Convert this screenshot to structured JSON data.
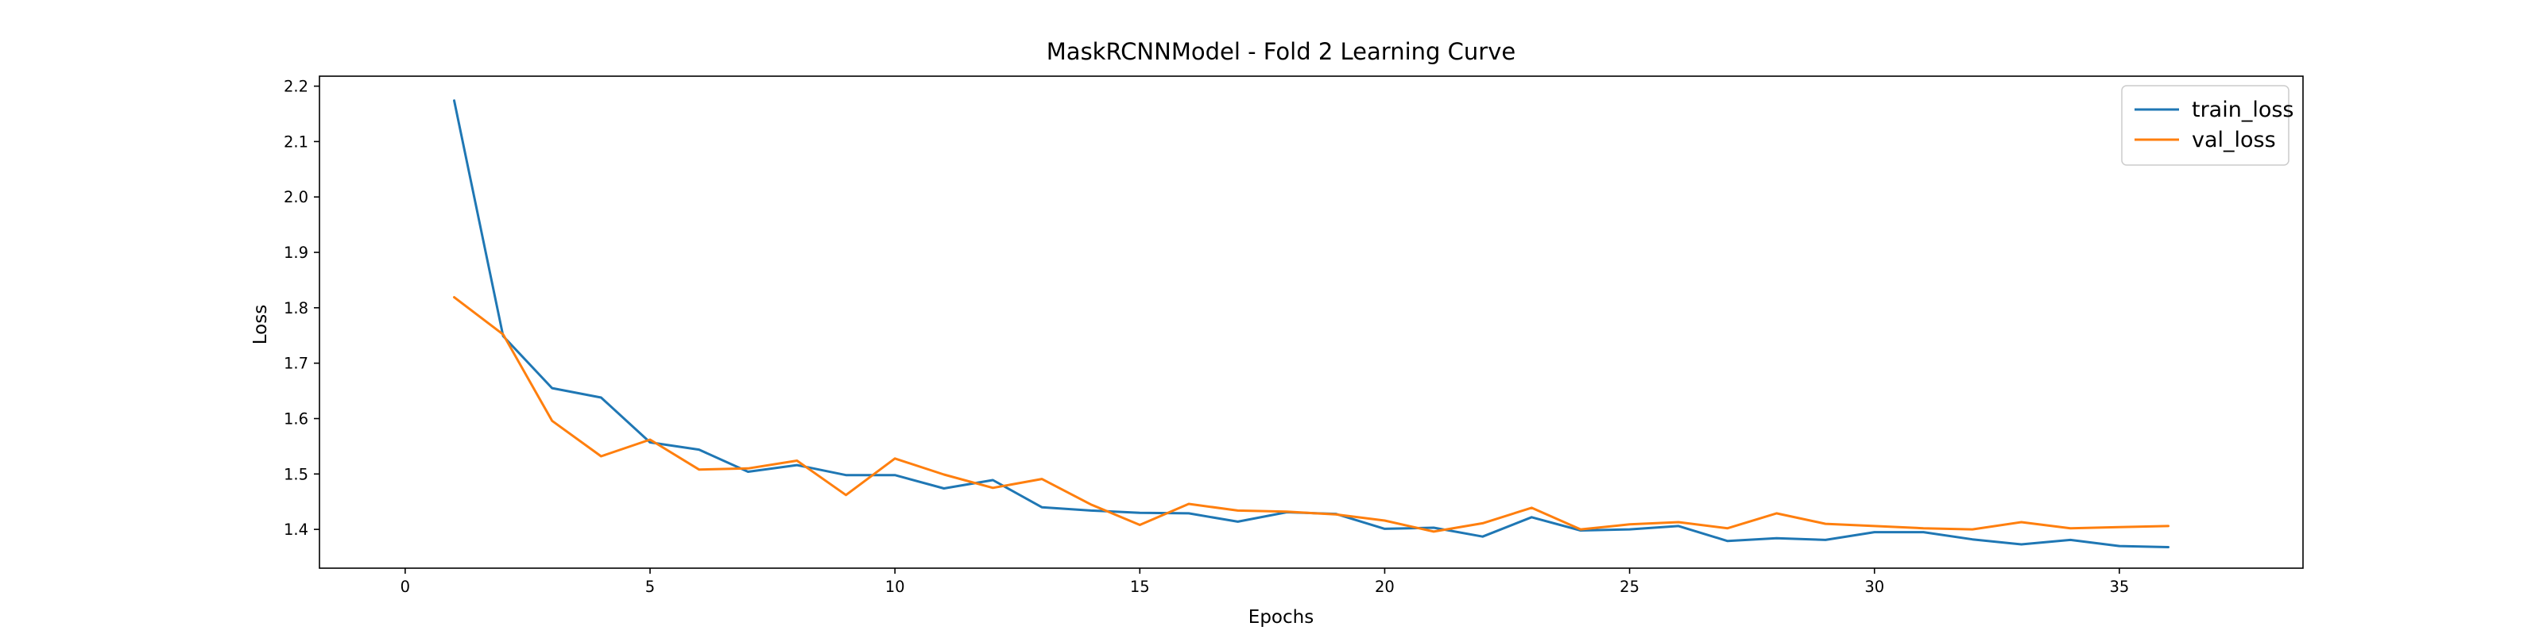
{
  "chart_data": {
    "type": "line",
    "title": "MaskRCNNModel - Fold 2 Learning Curve",
    "xlabel": "Epochs",
    "ylabel": "Loss",
    "xlim": [
      -1.75,
      38.75
    ],
    "ylim": [
      1.33,
      2.218
    ],
    "xticks": [
      0,
      5,
      10,
      15,
      20,
      25,
      30,
      35
    ],
    "yticks": [
      1.4,
      1.5,
      1.6,
      1.7,
      1.8,
      1.9,
      2.0,
      2.1,
      2.2
    ],
    "grid": false,
    "legend_position": "top-right",
    "x": [
      1,
      2,
      3,
      4,
      5,
      6,
      7,
      8,
      9,
      10,
      11,
      12,
      13,
      14,
      15,
      16,
      17,
      18,
      19,
      20,
      21,
      22,
      23,
      24,
      25,
      26,
      27,
      28,
      29,
      30,
      31,
      32,
      33,
      34,
      35,
      36
    ],
    "series": [
      {
        "name": "train_loss",
        "color": "#1f77b4",
        "values": [
          2.174,
          1.749,
          1.655,
          1.638,
          1.557,
          1.544,
          1.504,
          1.516,
          1.498,
          1.498,
          1.474,
          1.489,
          1.44,
          1.434,
          1.43,
          1.429,
          1.414,
          1.431,
          1.428,
          1.401,
          1.403,
          1.387,
          1.422,
          1.398,
          1.4,
          1.406,
          1.379,
          1.384,
          1.381,
          1.395,
          1.395,
          1.382,
          1.373,
          1.381,
          1.37,
          1.368
        ]
      },
      {
        "name": "val_loss",
        "color": "#ff7f0e",
        "values": [
          1.819,
          1.752,
          1.596,
          1.532,
          1.562,
          1.508,
          1.51,
          1.524,
          1.462,
          1.528,
          1.499,
          1.475,
          1.491,
          1.445,
          1.408,
          1.446,
          1.434,
          1.432,
          1.427,
          1.416,
          1.396,
          1.411,
          1.439,
          1.4,
          1.409,
          1.413,
          1.402,
          1.429,
          1.41,
          1.406,
          1.402,
          1.4,
          1.413,
          1.402,
          1.404,
          1.406
        ]
      }
    ]
  }
}
